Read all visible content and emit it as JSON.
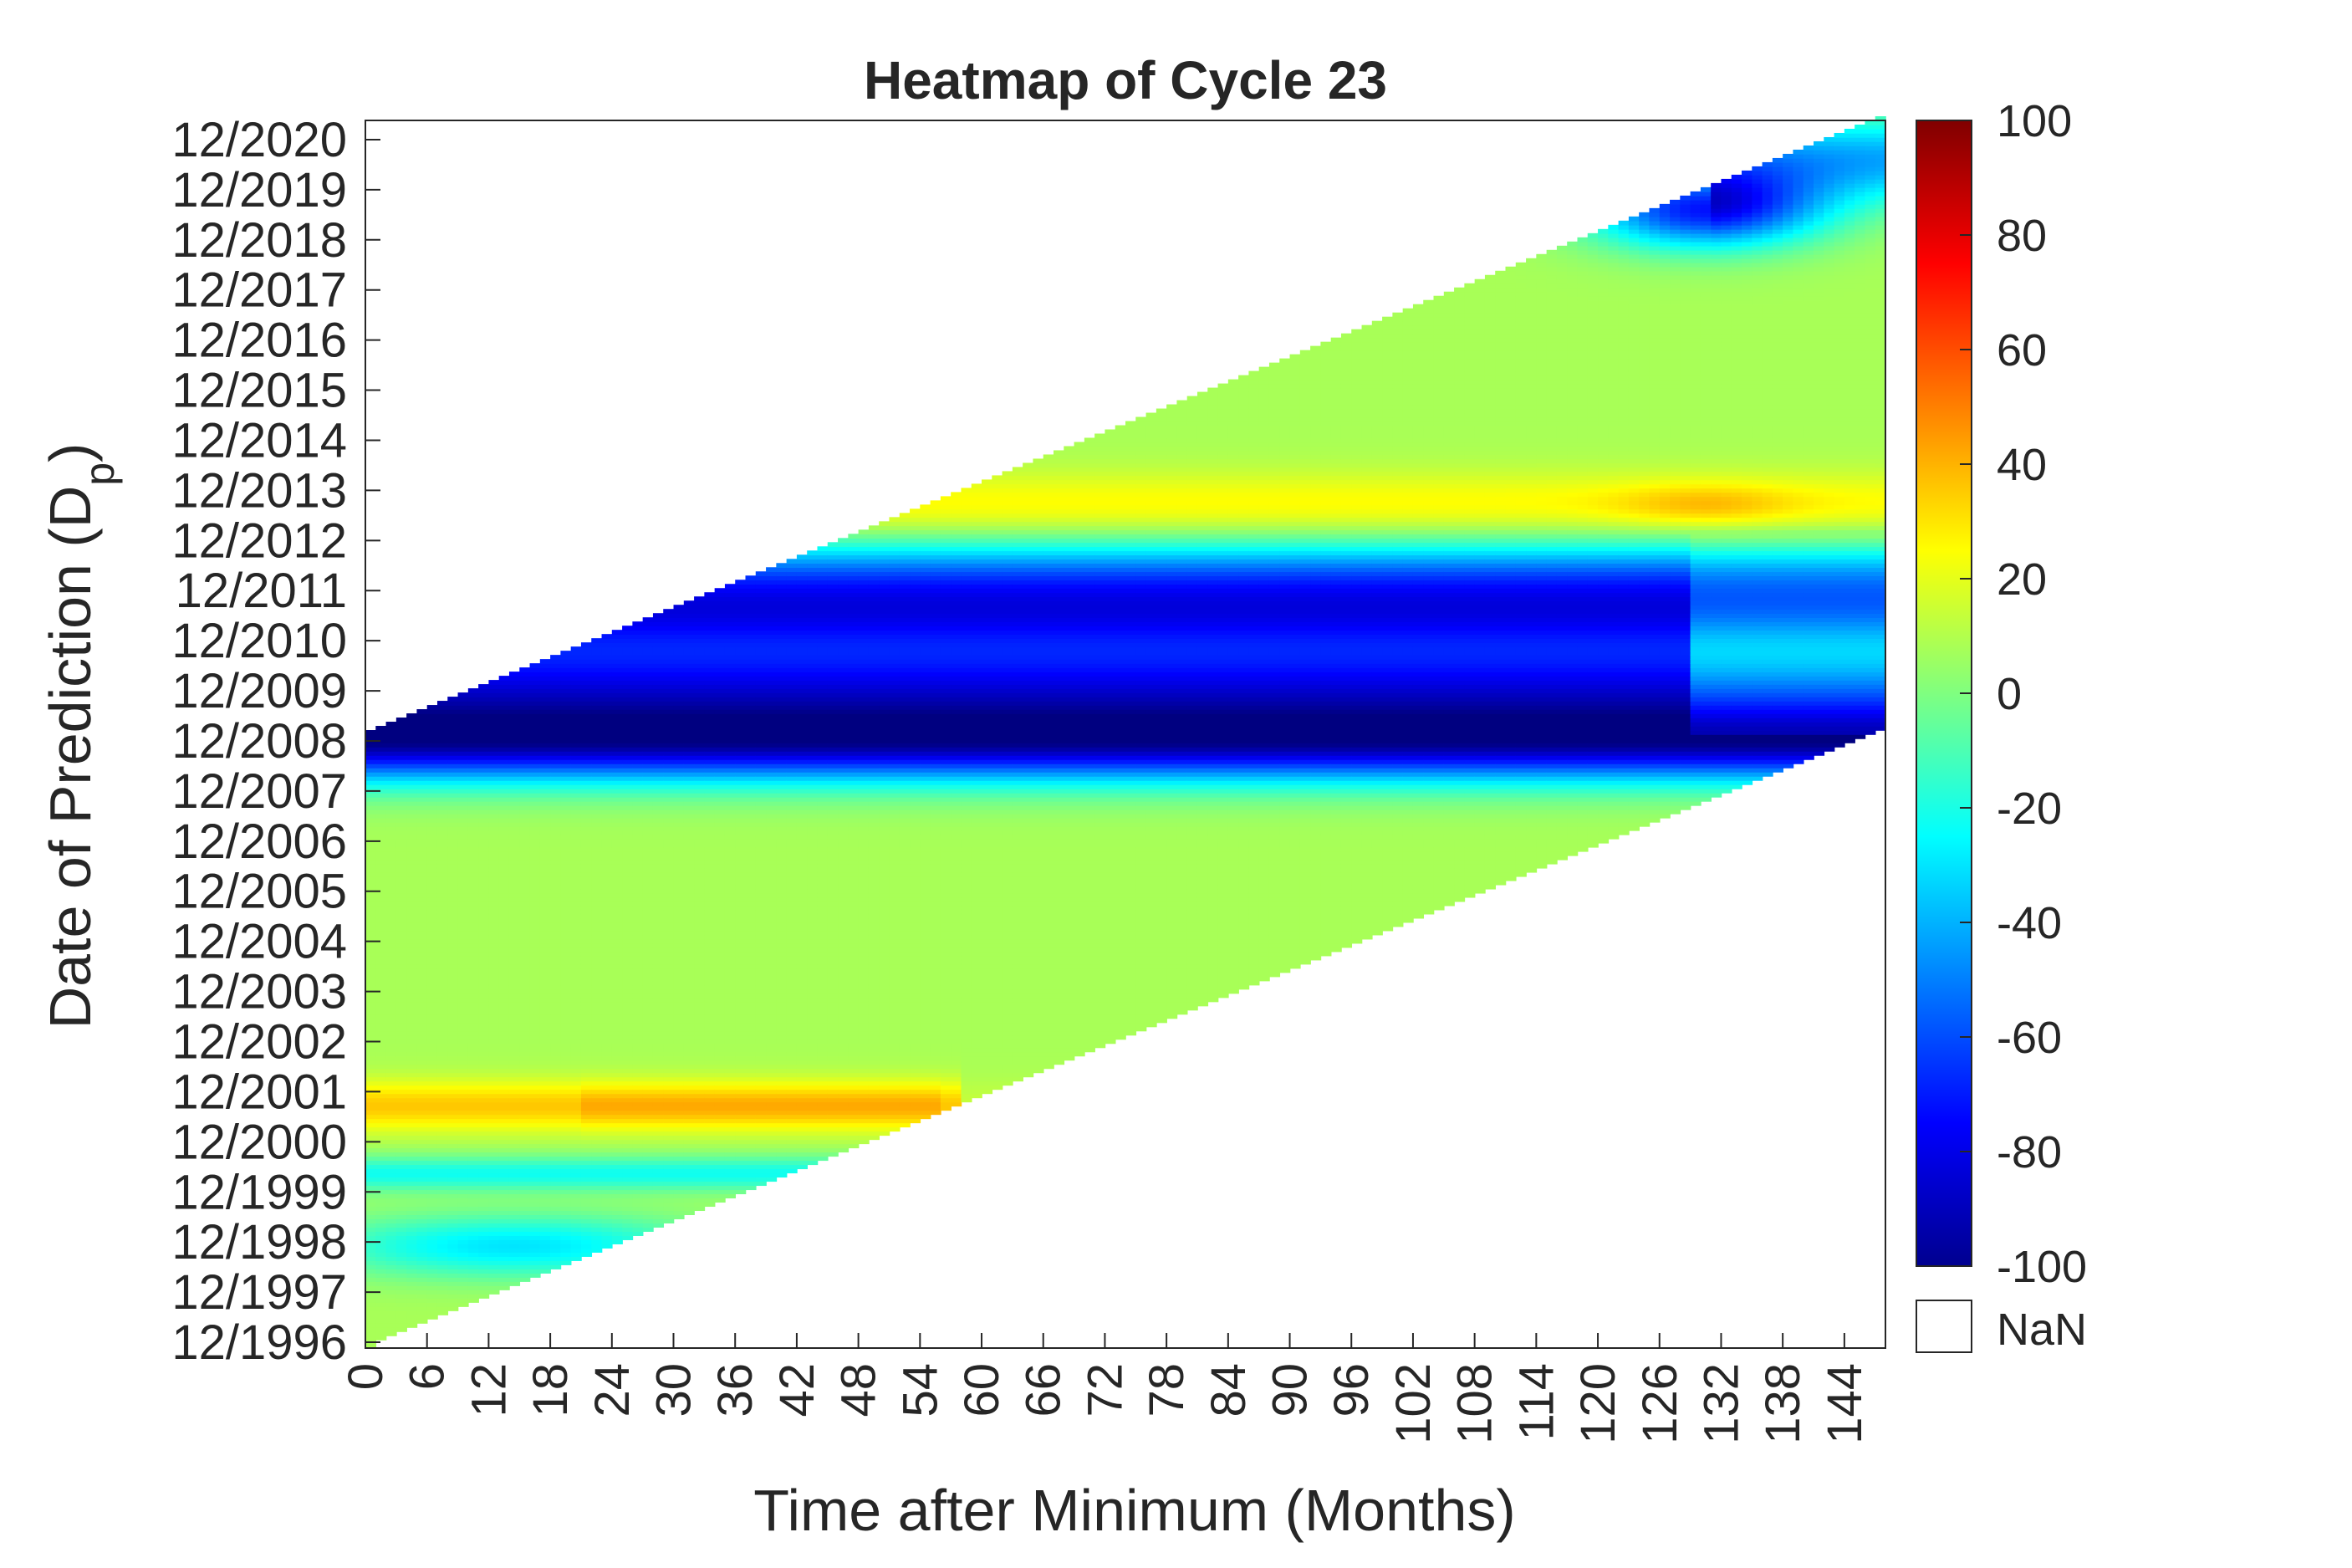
{
  "chart_data": {
    "type": "heatmap",
    "title": "Heatmap of Cycle 23",
    "xlabel": "Time after Minimum (Months)",
    "ylabel_main": "Date of Prediction (D",
    "ylabel_sub": "p",
    "ylabel_close": ")",
    "x_ticks": [
      "0",
      "6",
      "12",
      "18",
      "24",
      "30",
      "36",
      "42",
      "48",
      "54",
      "60",
      "66",
      "72",
      "78",
      "84",
      "90",
      "96",
      "102",
      "108",
      "114",
      "120",
      "126",
      "132",
      "138",
      "144"
    ],
    "xlim": [
      0,
      148
    ],
    "y_ticks": [
      "12/1996",
      "12/1997",
      "12/1998",
      "12/1999",
      "12/2000",
      "12/2001",
      "12/2002",
      "12/2003",
      "12/2004",
      "12/2005",
      "12/2006",
      "12/2007",
      "12/2008",
      "12/2009",
      "12/2010",
      "12/2011",
      "12/2012",
      "12/2013",
      "12/2014",
      "12/2015",
      "12/2016",
      "12/2017",
      "12/2018",
      "12/2019",
      "12/2020"
    ],
    "colorbar": {
      "colormap": "jet",
      "range": [
        -100,
        100
      ],
      "ticks": [
        "100",
        "80",
        "60",
        "40",
        "20",
        "0",
        "-20",
        "-40",
        "-60",
        "-80",
        "-100"
      ],
      "nan_label": "NaN",
      "nan_color": "#ffffff"
    },
    "data_region": "valid where 0 <= prediction year offset - month/12 <= 12.3 (parallelogram, NaN elsewhere)",
    "bands": [
      {
        "center_year": 2001.6,
        "value": 35,
        "note": "warm band, months 0-56"
      },
      {
        "center_year": 2000.3,
        "value": -20,
        "note": "cyan band"
      },
      {
        "center_year": 1998.8,
        "value": -30,
        "note": "cyan spot near months 6-24"
      },
      {
        "center_year": 2008.9,
        "value": -100,
        "note": "deep blue minimum"
      },
      {
        "center_year": 2009.8,
        "value": -100,
        "note": "deep blue core"
      },
      {
        "center_year": 2011.5,
        "value": -75,
        "note": "blue band"
      },
      {
        "center_year": 2013.5,
        "value": 25,
        "note": "yellow band, peak near month 130"
      },
      {
        "center_year": 2019.5,
        "value": -80,
        "note": "blue spot near month 130"
      }
    ]
  }
}
